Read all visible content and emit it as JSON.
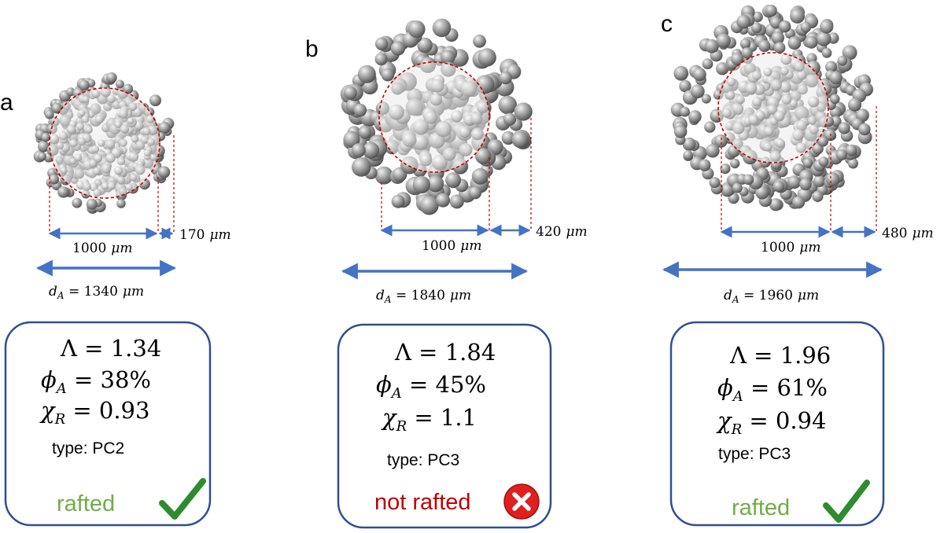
{
  "panels": [
    {
      "letter": "a",
      "core_width": "1000",
      "shell_width": "170",
      "diameter": "1340",
      "unit": "μm",
      "lambda": "1.34",
      "phi": "38%",
      "chi": "0.93",
      "type_label": "type: PC2",
      "result": "rafted",
      "result_icon": "check-icon"
    },
    {
      "letter": "b",
      "core_width": "1000",
      "shell_width": "420",
      "diameter": "1840",
      "unit": "μm",
      "lambda": "1.84",
      "phi": "45%",
      "chi": "1.1",
      "type_label": "type: PC3",
      "result": "not rafted",
      "result_icon": "cross-circle-icon"
    },
    {
      "letter": "c",
      "core_width": "1000",
      "shell_width": "480",
      "diameter": "1960",
      "unit": "μm",
      "lambda": "1.96",
      "phi": "61%",
      "chi": "0.94",
      "type_label": "type: PC3",
      "result": "rafted",
      "result_icon": "check-icon"
    }
  ],
  "colors": {
    "arrow": "#4472c4",
    "box_border": "#2f4f8f",
    "dashed": "#c00000",
    "rafted_text": "#70ad47",
    "not_rafted_text": "#c00000",
    "check": "#2e8b2e",
    "cross_bg": "#e02020"
  }
}
